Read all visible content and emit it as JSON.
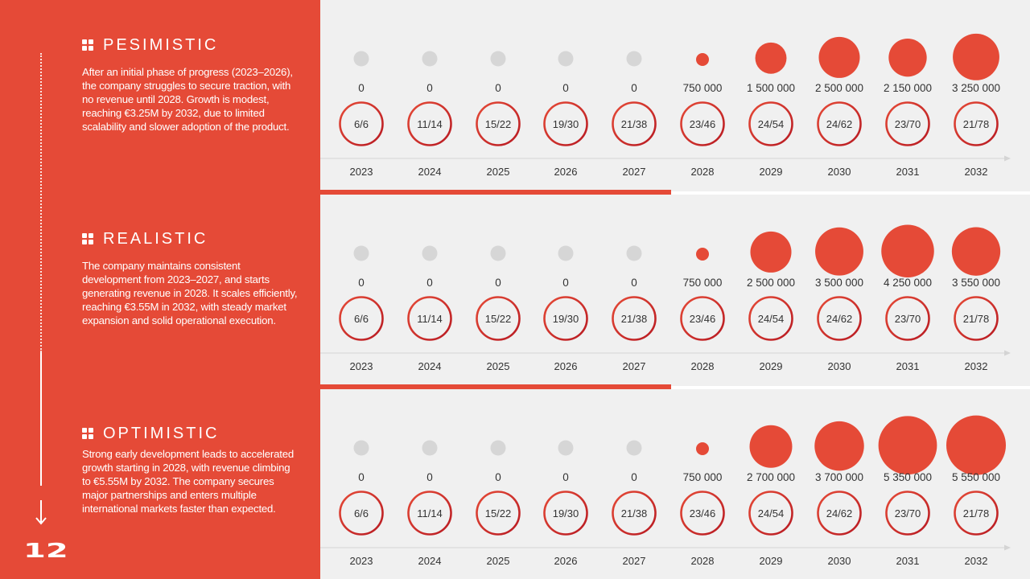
{
  "page": {
    "number": "12"
  },
  "colors": {
    "accent": "#e54a37",
    "panel_bg": "#f0f0f0",
    "inactive_dot": "#d6d6d6",
    "ring_dark": "#b81a22",
    "text": "#333333"
  },
  "scenarios": [
    {
      "title": "PESIMISTIC",
      "description": "After an initial phase of progress (2023–2026), the company struggles to secure traction, with no revenue until 2028. Growth is modest, reaching €3.25M by 2032, due to limited scalability and slower adoption of the product."
    },
    {
      "title": "REALISTIC",
      "description": "The company maintains consistent development from 2023–2027, and starts generating revenue in 2028. It scales efficiently, reaching €3.55M in 2032, with steady market expansion and solid operational execution."
    },
    {
      "title": "OPTIMISTIC",
      "description": "Strong early development leads to accelerated growth starting in 2028, with revenue climbing to €5.55M by 2032. The company secures major partnerships and enters multiple international markets faster than expected."
    }
  ],
  "chart_data": [
    {
      "type": "bubble",
      "title": "PESIMISTIC",
      "x": [
        "2023",
        "2024",
        "2025",
        "2026",
        "2027",
        "2028",
        "2029",
        "2030",
        "2031",
        "2032"
      ],
      "revenue": [
        0,
        0,
        0,
        0,
        0,
        750000,
        1500000,
        2500000,
        2150000,
        3250000
      ],
      "revenue_labels": [
        "0",
        "0",
        "0",
        "0",
        "0",
        "750 000",
        "1 500 000",
        "2 500 000",
        "2 150 000",
        "3 250 000"
      ],
      "ratios": [
        "6/6",
        "11/14",
        "15/22",
        "19/30",
        "21/38",
        "23/46",
        "24/54",
        "24/62",
        "23/70",
        "21/78"
      ]
    },
    {
      "type": "bubble",
      "title": "REALISTIC",
      "x": [
        "2023",
        "2024",
        "2025",
        "2026",
        "2027",
        "2028",
        "2029",
        "2030",
        "2031",
        "2032"
      ],
      "revenue": [
        0,
        0,
        0,
        0,
        0,
        750000,
        2500000,
        3500000,
        4250000,
        3550000
      ],
      "revenue_labels": [
        "0",
        "0",
        "0",
        "0",
        "0",
        "750 000",
        "2 500 000",
        "3 500 000",
        "4 250 000",
        "3 550 000"
      ],
      "ratios": [
        "6/6",
        "11/14",
        "15/22",
        "19/30",
        "21/38",
        "23/46",
        "24/54",
        "24/62",
        "23/70",
        "21/78"
      ]
    },
    {
      "type": "bubble",
      "title": "OPTIMISTIC",
      "x": [
        "2023",
        "2024",
        "2025",
        "2026",
        "2027",
        "2028",
        "2029",
        "2030",
        "2031",
        "2032"
      ],
      "revenue": [
        0,
        0,
        0,
        0,
        0,
        750000,
        2700000,
        3700000,
        5350000,
        5550000
      ],
      "revenue_labels": [
        "0",
        "0",
        "0",
        "0",
        "0",
        "750 000",
        "2 700 000",
        "3 700 000",
        "5 350 000",
        "5 550 000"
      ],
      "ratios": [
        "6/6",
        "11/14",
        "15/22",
        "19/30",
        "21/38",
        "23/46",
        "24/54",
        "24/62",
        "23/70",
        "21/78"
      ]
    }
  ]
}
